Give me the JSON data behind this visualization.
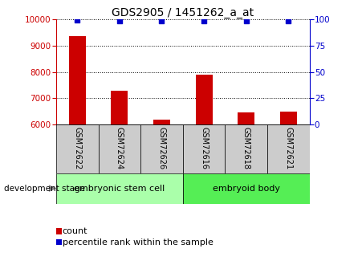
{
  "title": "GDS2905 / 1451262_a_at",
  "categories": [
    "GSM72622",
    "GSM72624",
    "GSM72626",
    "GSM72616",
    "GSM72618",
    "GSM72621"
  ],
  "bar_values": [
    9350,
    7280,
    6200,
    7900,
    6480,
    6490
  ],
  "percentile_values": [
    99.5,
    98.8,
    98.3,
    98.8,
    98.7,
    98.3
  ],
  "ylim_left": [
    6000,
    10000
  ],
  "ylim_right": [
    0,
    100
  ],
  "yticks_left": [
    6000,
    7000,
    8000,
    9000,
    10000
  ],
  "yticks_right": [
    0,
    25,
    50,
    75,
    100
  ],
  "bar_color": "#cc0000",
  "dot_color": "#0000cc",
  "grid_color": "#000000",
  "left_axis_color": "#cc0000",
  "right_axis_color": "#0000cc",
  "group1_label": "embryonic stem cell",
  "group2_label": "embryoid body",
  "group1_indices": [
    0,
    1,
    2
  ],
  "group2_indices": [
    3,
    4,
    5
  ],
  "group1_color": "#aaffaa",
  "group2_color": "#55ee55",
  "stage_label": "development stage",
  "legend_count_label": "count",
  "legend_pct_label": "percentile rank within the sample",
  "bg_color": "#ffffff",
  "xticklabel_bg": "#cccccc",
  "bar_width": 0.4
}
